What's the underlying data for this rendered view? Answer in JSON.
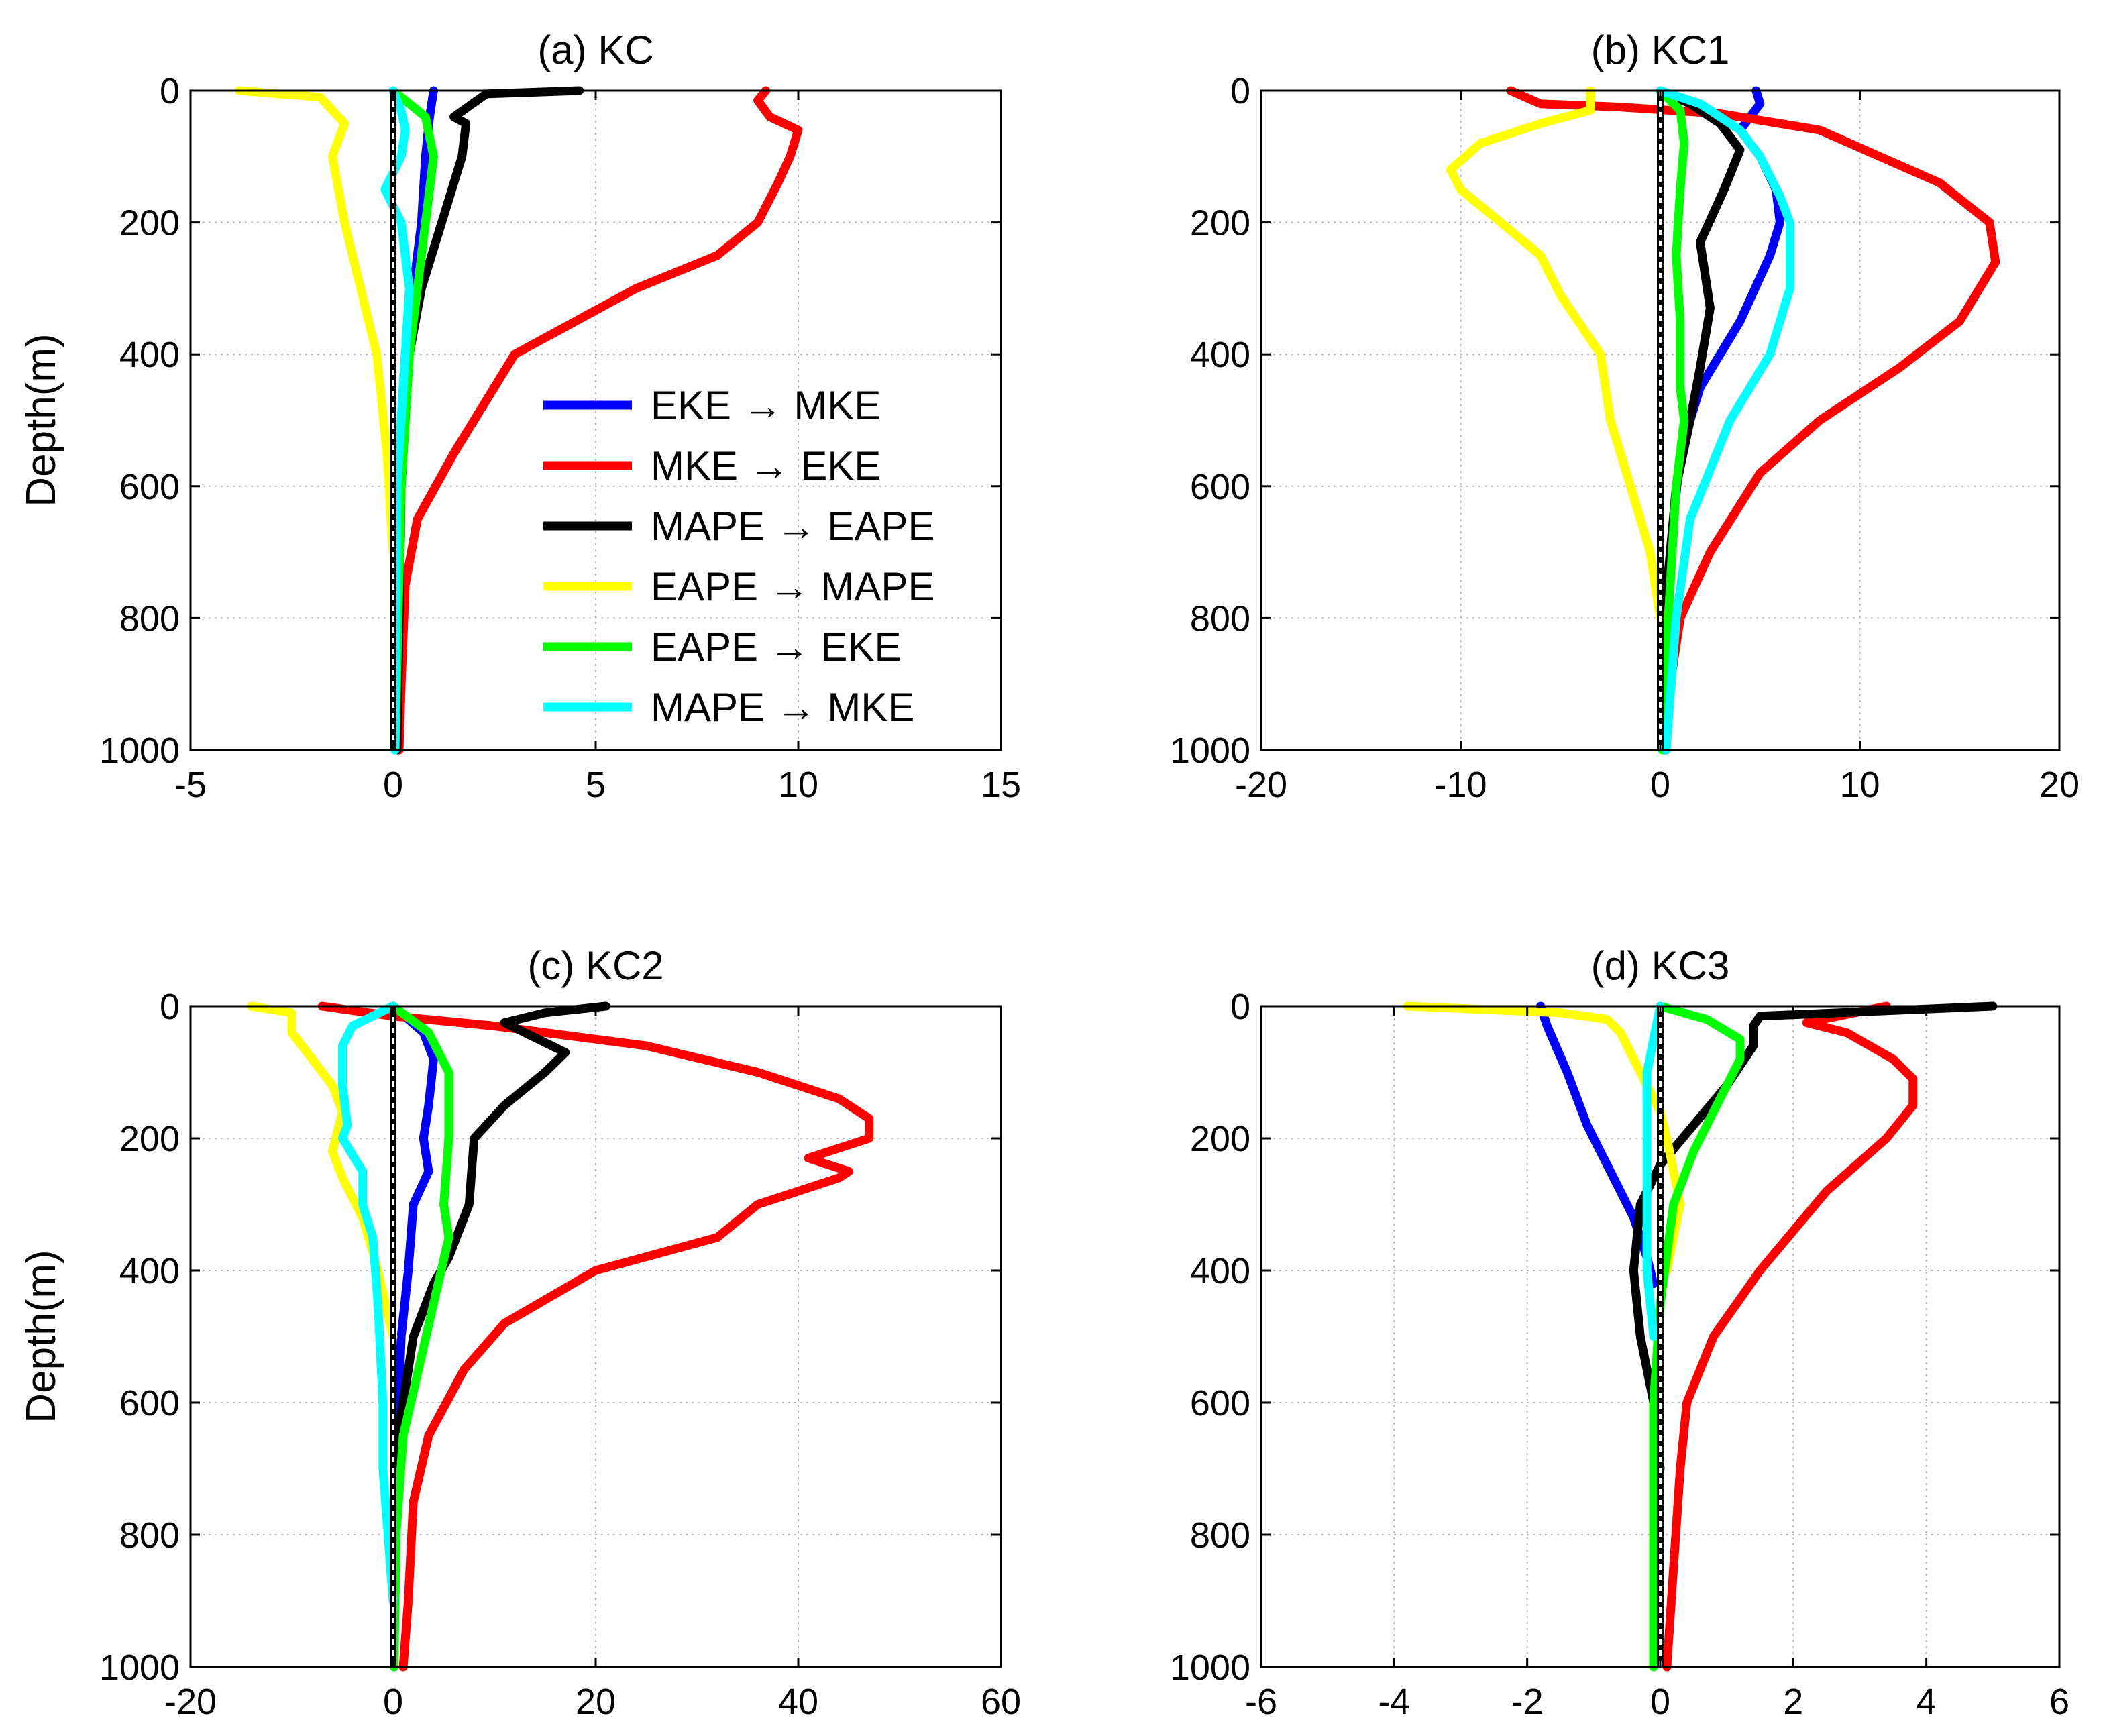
{
  "chart_data": [
    {
      "type": "line",
      "title": "(a) KC",
      "xlabel": "",
      "ylabel": "Depth(m)",
      "xlim": [
        -5,
        15
      ],
      "ylim": [
        1000,
        0
      ],
      "xticks": [
        -5,
        0,
        5,
        10,
        15
      ],
      "yticks": [
        0,
        200,
        400,
        600,
        800,
        1000
      ],
      "grid": true,
      "legend": "inside-right",
      "series": [
        {
          "name": "EKE → MKE",
          "color": "#0000ff",
          "x": [
            1.0,
            0.9,
            0.8,
            0.7,
            0.5,
            0.3,
            0.2,
            0.1,
            0.05
          ],
          "depth": [
            0,
            40,
            100,
            200,
            300,
            400,
            500,
            700,
            1000
          ]
        },
        {
          "name": "MKE → EKE",
          "color": "#ff0000",
          "x": [
            9.2,
            9.0,
            9.3,
            10.0,
            9.8,
            9.5,
            9.0,
            8.0,
            6.0,
            3.0,
            1.5,
            0.6,
            0.3,
            0.2,
            0.15
          ],
          "depth": [
            0,
            15,
            40,
            60,
            100,
            140,
            200,
            250,
            300,
            400,
            550,
            650,
            750,
            900,
            1000
          ]
        },
        {
          "name": "MAPE → EAPE",
          "color": "#000000",
          "x": [
            4.6,
            2.3,
            1.5,
            1.8,
            1.7,
            1.2,
            0.7,
            0.4,
            0.2,
            0.1
          ],
          "depth": [
            0,
            5,
            40,
            50,
            100,
            200,
            300,
            400,
            600,
            1000
          ]
        },
        {
          "name": "EAPE → MAPE",
          "color": "#ffff00",
          "x": [
            -3.8,
            -1.8,
            -1.2,
            -1.5,
            -1.2,
            -0.8,
            -0.4,
            -0.15,
            0.0
          ],
          "depth": [
            0,
            10,
            50,
            100,
            200,
            300,
            400,
            550,
            700
          ]
        },
        {
          "name": "EAPE → EKE",
          "color": "#00ff00",
          "x": [
            0.0,
            0.8,
            1.0,
            0.8,
            0.4,
            0.2,
            0.05
          ],
          "depth": [
            0,
            40,
            100,
            200,
            400,
            600,
            1000
          ]
        },
        {
          "name": "MAPE → MKE",
          "color": "#00ffff",
          "x": [
            0.0,
            0.2,
            0.3,
            0.2,
            -0.2,
            0.2,
            0.4,
            0.3,
            0.1,
            0.05
          ],
          "depth": [
            0,
            30,
            60,
            100,
            150,
            200,
            300,
            400,
            600,
            1000
          ]
        }
      ]
    },
    {
      "type": "line",
      "title": "(b) KC1",
      "xlabel": "",
      "ylabel": "",
      "xlim": [
        -20,
        20
      ],
      "ylim": [
        1000,
        0
      ],
      "xticks": [
        -20,
        -10,
        0,
        10,
        20
      ],
      "yticks": [
        0,
        200,
        400,
        600,
        800,
        1000
      ],
      "grid": true,
      "series": [
        {
          "name": "EKE → MKE",
          "color": "#0000ff",
          "x": [
            4.8,
            5.0,
            4.0,
            5.0,
            5.8,
            6.0,
            5.5,
            4.0,
            2.0,
            1.0,
            0.5,
            0.2
          ],
          "depth": [
            0,
            20,
            60,
            100,
            150,
            200,
            250,
            350,
            450,
            550,
            700,
            1000
          ]
        },
        {
          "name": "MKE → EKE",
          "color": "#ff0000",
          "x": [
            -7.5,
            -6.0,
            -2.0,
            3.0,
            8.0,
            14.0,
            16.5,
            16.8,
            15.0,
            12.0,
            8.0,
            5.0,
            2.5,
            1.0,
            0.5,
            0.3
          ],
          "depth": [
            0,
            20,
            25,
            35,
            60,
            140,
            200,
            260,
            350,
            420,
            500,
            580,
            700,
            800,
            900,
            1000
          ]
        },
        {
          "name": "MAPE → EAPE",
          "color": "#000000",
          "x": [
            0.0,
            1.5,
            3.0,
            4.0,
            3.2,
            2.0,
            2.5,
            2.0,
            1.5,
            0.8,
            0.2
          ],
          "depth": [
            0,
            20,
            50,
            90,
            150,
            230,
            330,
            420,
            500,
            600,
            800
          ]
        },
        {
          "name": "EAPE → MAPE",
          "color": "#ffff00",
          "x": [
            -3.5,
            -3.5,
            -6.0,
            -9.0,
            -10.5,
            -10.0,
            -8.0,
            -6.0,
            -5.0,
            -3.0,
            -2.5,
            -1.5,
            -0.5,
            0.0
          ],
          "depth": [
            0,
            30,
            50,
            80,
            120,
            150,
            200,
            250,
            310,
            400,
            500,
            600,
            700,
            800
          ]
        },
        {
          "name": "EAPE → EKE",
          "color": "#00ff00",
          "x": [
            0.0,
            1.0,
            1.2,
            1.0,
            0.8,
            1.0,
            1.0,
            1.2,
            0.8,
            0.4,
            0.1
          ],
          "depth": [
            0,
            30,
            80,
            150,
            250,
            350,
            450,
            500,
            600,
            800,
            1000
          ]
        },
        {
          "name": "MAPE → MKE",
          "color": "#00ffff",
          "x": [
            0.0,
            2.0,
            4.0,
            5.0,
            6.0,
            6.5,
            6.5,
            6.0,
            5.5,
            3.5,
            1.5,
            0.8,
            0.3
          ],
          "depth": [
            0,
            20,
            60,
            100,
            160,
            200,
            300,
            350,
            400,
            500,
            650,
            800,
            1000
          ]
        }
      ]
    },
    {
      "type": "line",
      "title": "(c) KC2",
      "xlabel": "",
      "ylabel": "Depth(m)",
      "xlim": [
        -20,
        60
      ],
      "ylim": [
        1000,
        0
      ],
      "xticks": [
        -20,
        0,
        20,
        40,
        60
      ],
      "yticks": [
        0,
        200,
        400,
        600,
        800,
        1000
      ],
      "grid": true,
      "series": [
        {
          "name": "EKE → MKE",
          "color": "#0000ff",
          "x": [
            0.0,
            3.0,
            4.0,
            3.5,
            3.0,
            3.5,
            2.0,
            1.5,
            0.8,
            0.3,
            0.1
          ],
          "depth": [
            0,
            40,
            80,
            150,
            200,
            250,
            300,
            400,
            500,
            700,
            1000
          ]
        },
        {
          "name": "MKE → EKE",
          "color": "#ff0000",
          "x": [
            -7.0,
            0.0,
            10.0,
            25.0,
            36.0,
            44.0,
            47.0,
            47.0,
            41.0,
            45.0,
            44.0,
            36.0,
            32.0,
            20.0,
            11.0,
            7.0,
            3.5,
            2.0,
            1.5,
            1.0
          ],
          "depth": [
            0,
            15,
            30,
            60,
            100,
            140,
            170,
            200,
            230,
            250,
            260,
            300,
            350,
            400,
            480,
            550,
            650,
            750,
            900,
            1000
          ]
        },
        {
          "name": "MAPE → EAPE",
          "color": "#000000",
          "x": [
            21.0,
            15.0,
            11.0,
            13.0,
            17.0,
            15.0,
            11.0,
            8.0,
            7.5,
            5.5,
            4.0,
            2.0,
            0.5,
            0.2
          ],
          "depth": [
            0,
            10,
            25,
            40,
            70,
            100,
            150,
            200,
            300,
            380,
            420,
            500,
            650,
            800
          ]
        },
        {
          "name": "EAPE → MAPE",
          "color": "#ffff00",
          "x": [
            -14.0,
            -10.0,
            -10.0,
            -8.0,
            -6.0,
            -5.0,
            -6.0,
            -5.0,
            -3.0,
            -1.5,
            0.0
          ],
          "depth": [
            0,
            10,
            40,
            80,
            120,
            160,
            220,
            260,
            320,
            400,
            500
          ]
        },
        {
          "name": "EAPE → EKE",
          "color": "#00ff00",
          "x": [
            0.0,
            3.5,
            5.5,
            5.5,
            5.0,
            5.5,
            4.0,
            2.5,
            1.0,
            0.3,
            0.1
          ],
          "depth": [
            0,
            40,
            100,
            200,
            300,
            350,
            450,
            550,
            650,
            800,
            1000
          ]
        },
        {
          "name": "MAPE → MKE",
          "color": "#00ffff",
          "x": [
            0.0,
            -4.0,
            -5.0,
            -5.0,
            -4.5,
            -5.0,
            -3.0,
            -3.0,
            -2.0,
            -1.5,
            -1.0,
            -1.0,
            0.0
          ],
          "depth": [
            0,
            30,
            60,
            120,
            180,
            200,
            250,
            300,
            350,
            450,
            600,
            700,
            900
          ]
        }
      ]
    },
    {
      "type": "line",
      "title": "(d) KC3",
      "xlabel": "",
      "ylabel": "",
      "xlim": [
        -6,
        6
      ],
      "ylim": [
        1000,
        0
      ],
      "xticks": [
        -6,
        -4,
        -2,
        0,
        2,
        4,
        6
      ],
      "yticks": [
        0,
        200,
        400,
        600,
        800,
        1000
      ],
      "grid": true,
      "series": [
        {
          "name": "EKE → MKE",
          "color": "#0000ff",
          "x": [
            -1.8,
            -1.7,
            -1.4,
            -1.1,
            -0.7,
            -0.4,
            -0.2,
            -0.1
          ],
          "depth": [
            0,
            30,
            100,
            180,
            260,
            320,
            380,
            420
          ]
        },
        {
          "name": "MKE → EKE",
          "color": "#ff0000",
          "x": [
            3.4,
            2.2,
            2.8,
            3.5,
            3.8,
            3.8,
            3.4,
            2.5,
            1.5,
            0.8,
            0.4,
            0.3,
            0.2,
            0.1
          ],
          "depth": [
            0,
            25,
            40,
            80,
            110,
            150,
            200,
            280,
            400,
            500,
            600,
            700,
            850,
            1000
          ]
        },
        {
          "name": "MAPE → EAPE",
          "color": "#000000",
          "x": [
            5.0,
            1.5,
            1.4,
            1.4,
            1.0,
            0.5,
            0.0,
            -0.3,
            -0.4,
            -0.3,
            -0.1,
            0.0
          ],
          "depth": [
            0,
            15,
            30,
            60,
            120,
            180,
            240,
            300,
            400,
            500,
            600,
            700
          ]
        },
        {
          "name": "EAPE → MAPE",
          "color": "#ffff00",
          "x": [
            -3.8,
            -1.5,
            -0.8,
            -0.6,
            -0.4,
            -0.2,
            0.0,
            0.1,
            0.3,
            0.1
          ],
          "depth": [
            0,
            10,
            20,
            40,
            80,
            120,
            160,
            200,
            300,
            400
          ]
        },
        {
          "name": "EAPE → EKE",
          "color": "#00ff00",
          "x": [
            0.0,
            0.7,
            1.2,
            1.2,
            1.0,
            0.8,
            0.5,
            0.2,
            0.0,
            -0.1,
            -0.1
          ],
          "depth": [
            0,
            20,
            50,
            80,
            120,
            160,
            220,
            300,
            450,
            600,
            1000
          ]
        },
        {
          "name": "MAPE → MKE",
          "color": "#00ffff",
          "x": [
            0.0,
            -0.1,
            -0.2,
            -0.2,
            -0.2,
            -0.2,
            -0.15,
            -0.1
          ],
          "depth": [
            0,
            50,
            100,
            200,
            300,
            400,
            450,
            500
          ]
        }
      ]
    }
  ]
}
